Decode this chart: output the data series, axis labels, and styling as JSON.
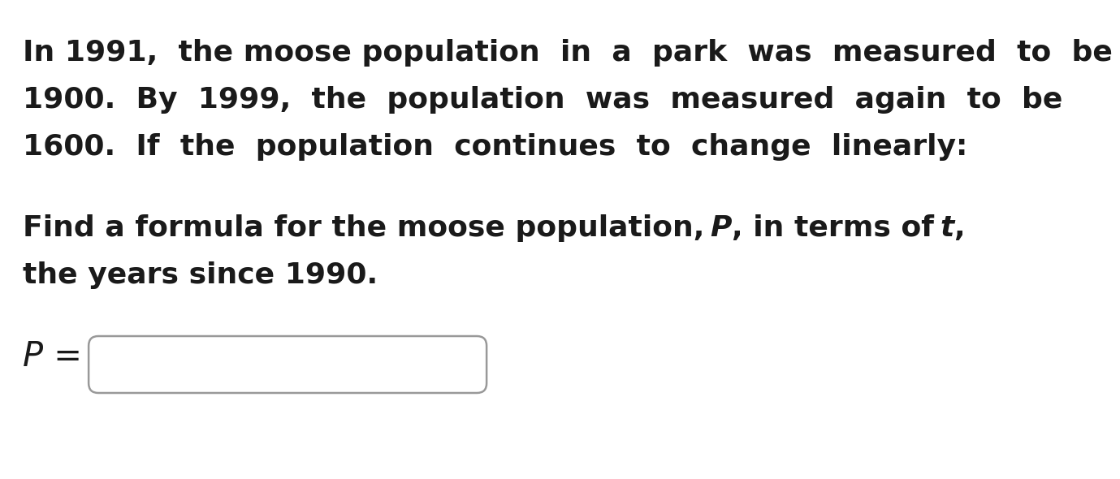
{
  "background_color": "#ffffff",
  "p1_line1": "In 1991,  the moose population  in  a  park  was  measured  to  be",
  "p1_line2": "1900.  By  1999,  the  population  was  measured  again  to  be",
  "p1_line3": "1600.  If  the  population  continues  to  change  linearly:",
  "p2_line2": "the years since 1990.",
  "text_color": "#1a1a1a",
  "box_edge_color": "#999999",
  "font_size": 26,
  "font_family": "DejaVu Sans"
}
